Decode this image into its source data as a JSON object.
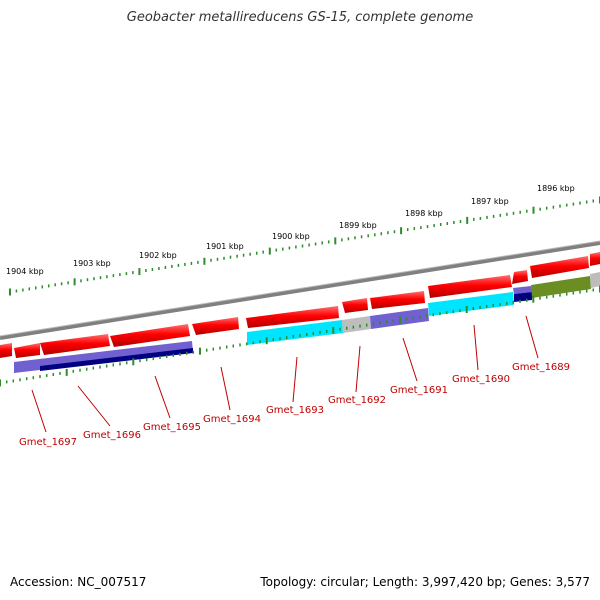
{
  "title": "Geobacter metallireducens GS-15, complete genome",
  "footer": {
    "accession": "Accession: NC_007517",
    "summary": "Topology: circular; Length: 3,997,420 bp; Genes: 3,577"
  },
  "kbp_labels": [
    "1904 kbp",
    "1903 kbp",
    "1902 kbp",
    "1901 kbp",
    "1900 kbp",
    "1899 kbp",
    "1898 kbp",
    "1897 kbp",
    "1896 kbp"
  ],
  "gene_labels": [
    "Gmet_1697",
    "Gmet_1696",
    "Gmet_1695",
    "Gmet_1694",
    "Gmet_1693",
    "Gmet_1692",
    "Gmet_1691",
    "Gmet_1690",
    "Gmet_1689"
  ],
  "colors": {
    "cds": "#ff0000",
    "backbone": "#808080",
    "ticks": "#2e8b2e",
    "label": "#c00000",
    "cyan": "#00e5ff",
    "purple": "#7060d0",
    "navy": "#000080",
    "olive": "#6b8e23",
    "gray": "#bdbdbd"
  }
}
